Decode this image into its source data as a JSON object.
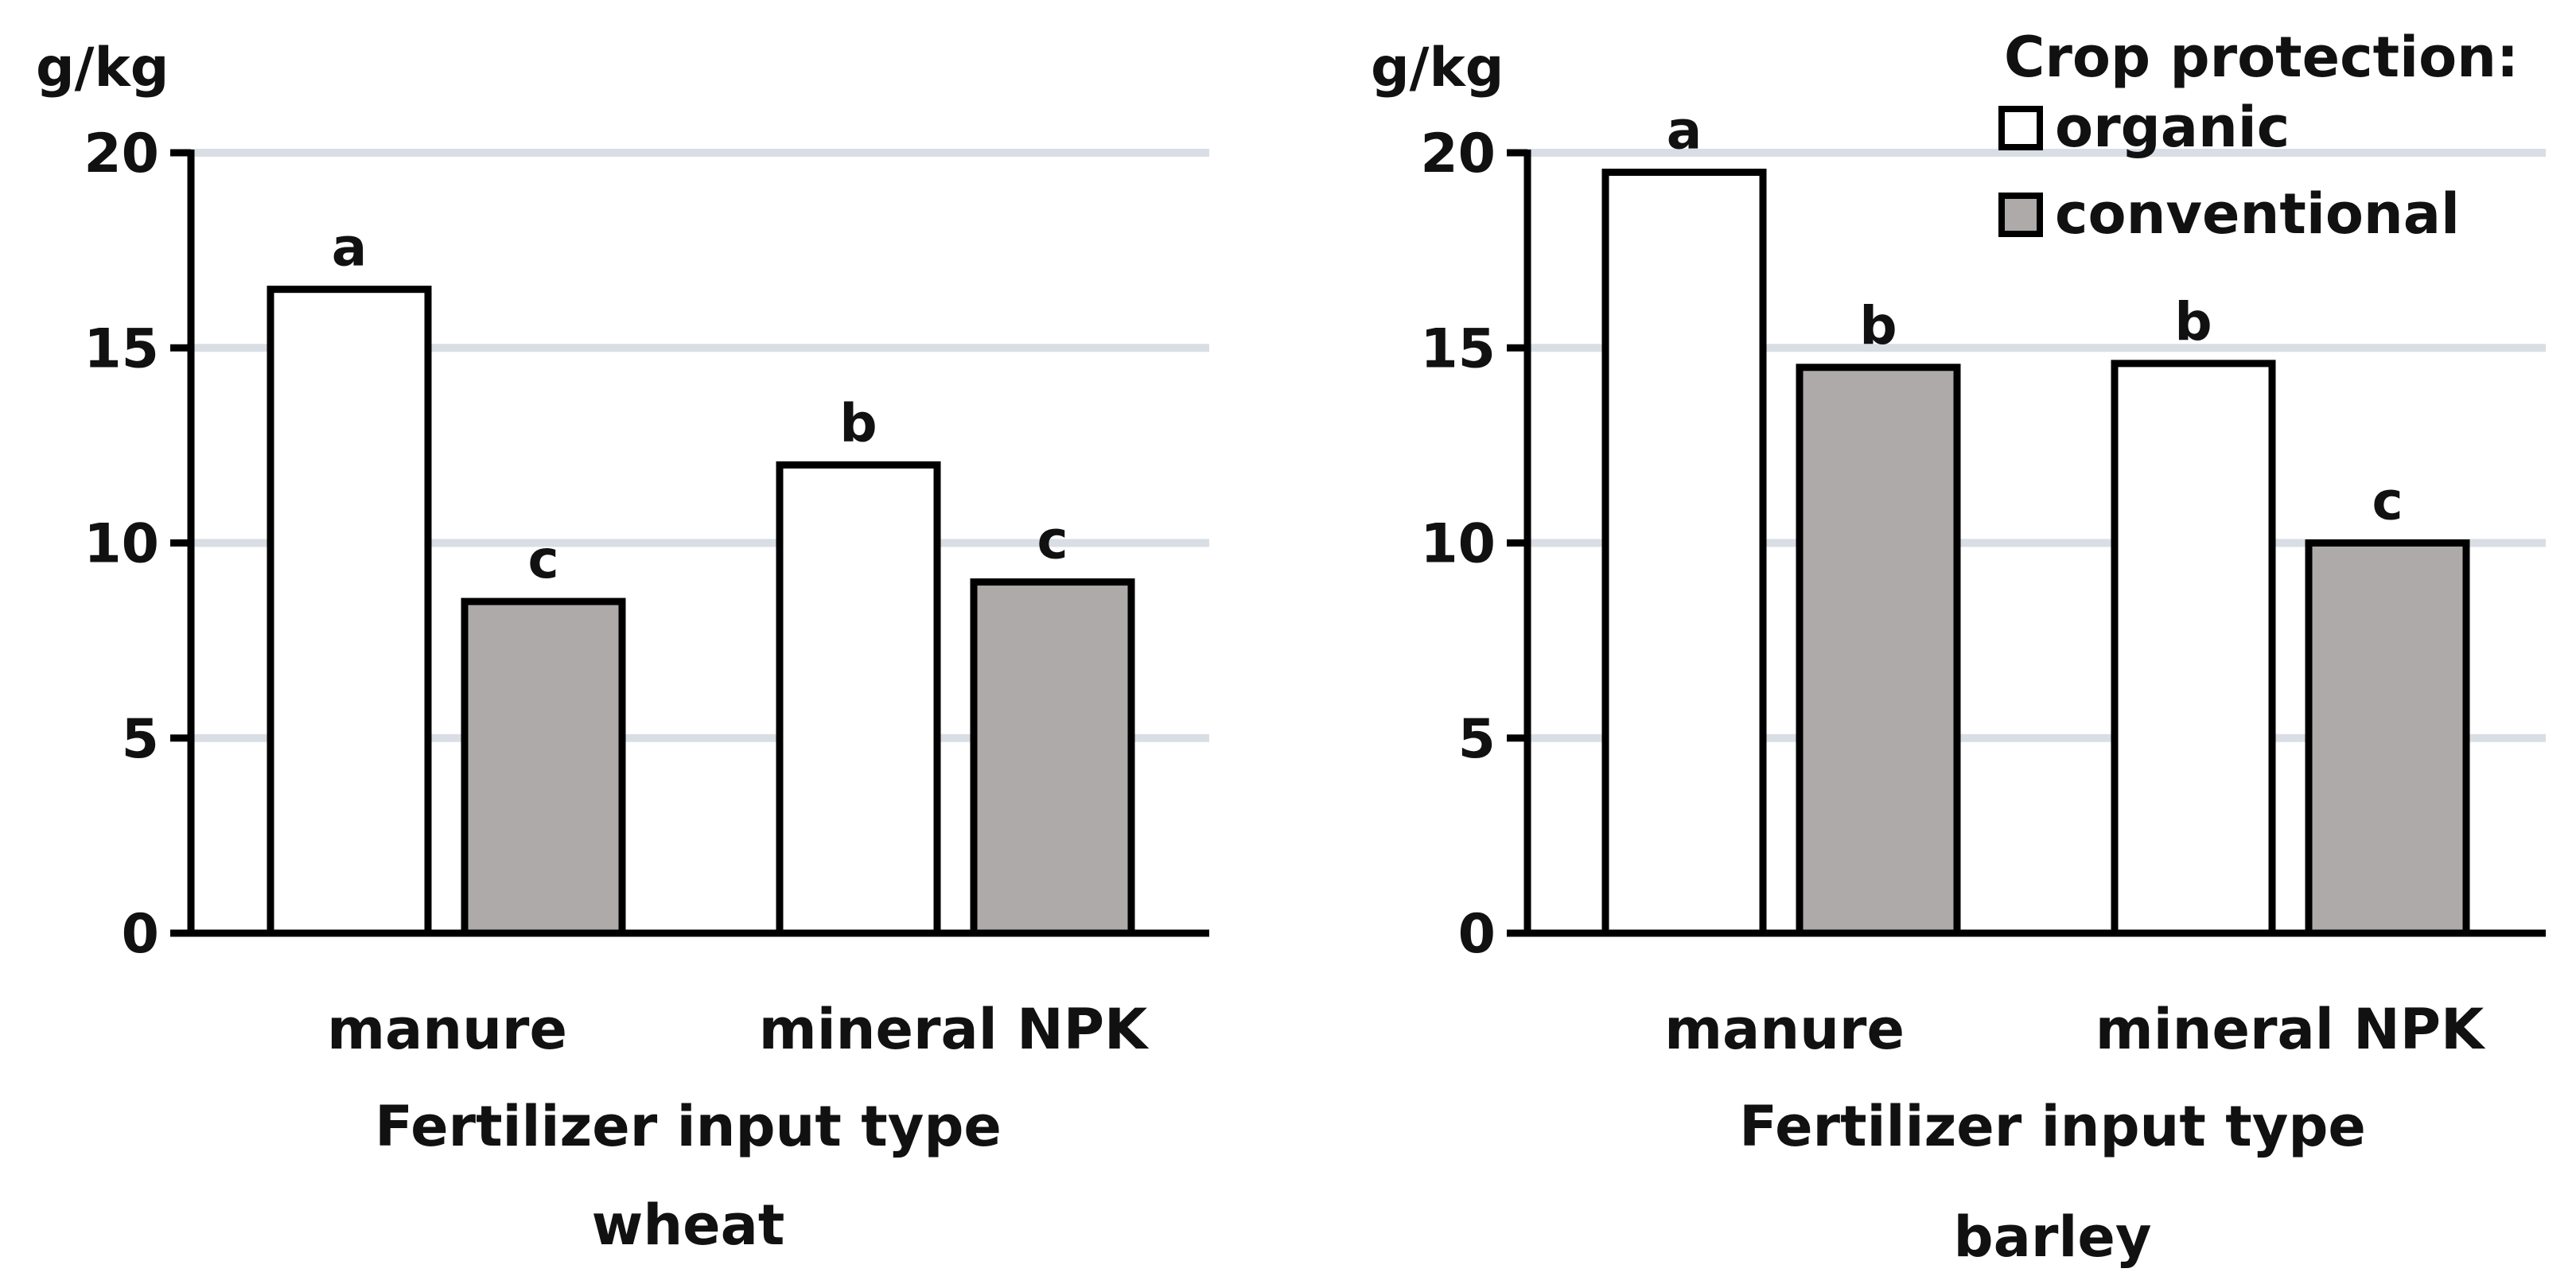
{
  "legend": {
    "title": "Crop protection:",
    "items": [
      {
        "label": "organic",
        "color": "#ffffff"
      },
      {
        "label": "conventional",
        "color": "#aeaaa9"
      }
    ]
  },
  "chart_data": [
    {
      "type": "bar",
      "title": "wheat",
      "xlabel": "Fertilizer input type",
      "ylabel": "g/kg",
      "ylim": [
        0,
        20
      ],
      "yticks": [
        0,
        5,
        10,
        15,
        20
      ],
      "grid": true,
      "categories": [
        "manure",
        "mineral NPK"
      ],
      "series": [
        {
          "name": "organic",
          "values": [
            16.5,
            12
          ],
          "letters": [
            "a",
            "b"
          ]
        },
        {
          "name": "conventional",
          "values": [
            8.5,
            9
          ],
          "letters": [
            "c",
            "c"
          ]
        }
      ]
    },
    {
      "type": "bar",
      "title": "barley",
      "xlabel": "Fertilizer input type",
      "ylabel": "g/kg",
      "ylim": [
        0,
        20
      ],
      "yticks": [
        0,
        5,
        10,
        15,
        20
      ],
      "grid": true,
      "categories": [
        "manure",
        "mineral NPK"
      ],
      "series": [
        {
          "name": "organic",
          "values": [
            19.5,
            14.6
          ],
          "letters": [
            "a",
            "b"
          ]
        },
        {
          "name": "conventional",
          "values": [
            14.5,
            10
          ],
          "letters": [
            "b",
            "c"
          ]
        }
      ]
    }
  ]
}
